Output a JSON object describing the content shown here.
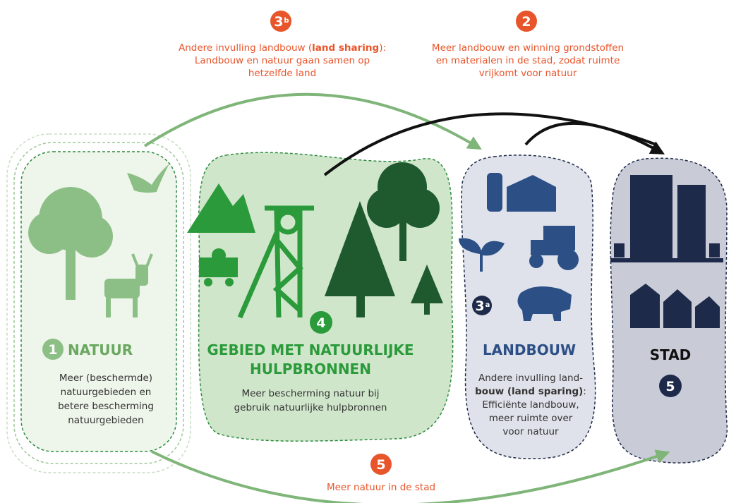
{
  "annotations": {
    "sharing": {
      "badge": {
        "number": "3",
        "suffix": "b"
      },
      "line1_start": "Andere invulling landbouw (",
      "line1_bold": "land sharing",
      "line1_end": "):",
      "lines": [
        "Landbouw en natuur gaan samen op",
        "hetzelfde land"
      ]
    },
    "city_production": {
      "badge": {
        "number": "2"
      },
      "lines": [
        "Meer landbouw en winning grondstoffen",
        "en materialen in de stad, zodat ruimte",
        "vrijkomt voor natuur"
      ]
    },
    "city_nature": {
      "badge": {
        "number": "5"
      },
      "lines": [
        "Meer natuur in de stad"
      ]
    }
  },
  "zones": {
    "natuur": {
      "badge": {
        "number": "1"
      },
      "title": "NATUUR",
      "lines": [
        "Meer (beschermde)",
        "natuurgebieden en",
        "betere bescherming",
        "natuurgebieden"
      ]
    },
    "hulpbronnen": {
      "badge": {
        "number": "4"
      },
      "title_lines": [
        "GEBIED MET NATUURLIJKE",
        "HULPBRONNEN"
      ],
      "lines": [
        "Meer bescherming natuur bij",
        "gebruik natuurlijke hulpbronnen"
      ]
    },
    "landbouw": {
      "badge": {
        "number": "3",
        "suffix": "a"
      },
      "title": "LANDBOUW",
      "line1": "Andere invulling land-",
      "line2_bold": "bouw (land sparing)",
      "line2_end": ":",
      "lines": [
        "Efficiënte landbouw,",
        "meer ruimte over",
        "voor natuur"
      ]
    },
    "stad": {
      "title": "STAD",
      "badge": {
        "number": "5"
      }
    }
  }
}
